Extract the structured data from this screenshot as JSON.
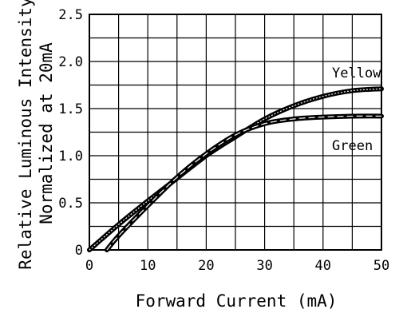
{
  "chart_data": {
    "type": "line",
    "xlabel": "Forward Current (mA)",
    "ylabel_line1": "Relative Luminous Intensity",
    "ylabel_line2": "Normalized at 20mA",
    "xlim": [
      0,
      50
    ],
    "ylim": [
      0,
      2.5
    ],
    "x_ticks": [
      "0",
      "10",
      "20",
      "30",
      "40",
      "50"
    ],
    "y_ticks": [
      "0",
      "0.5",
      "1.0",
      "1.5",
      "2.0",
      "2.5"
    ],
    "grid": true,
    "series": [
      {
        "name": "Yellow",
        "x": [
          0,
          5,
          10,
          15,
          20,
          25,
          30,
          35,
          40,
          45,
          50
        ],
        "y": [
          0.0,
          0.27,
          0.52,
          0.76,
          1.0,
          1.2,
          1.39,
          1.53,
          1.63,
          1.69,
          1.71
        ]
      },
      {
        "name": "Green",
        "x": [
          3,
          5,
          10,
          15,
          20,
          25,
          30,
          35,
          40,
          45,
          50
        ],
        "y": [
          0.0,
          0.15,
          0.47,
          0.77,
          1.02,
          1.22,
          1.34,
          1.39,
          1.41,
          1.42,
          1.42
        ]
      }
    ]
  }
}
